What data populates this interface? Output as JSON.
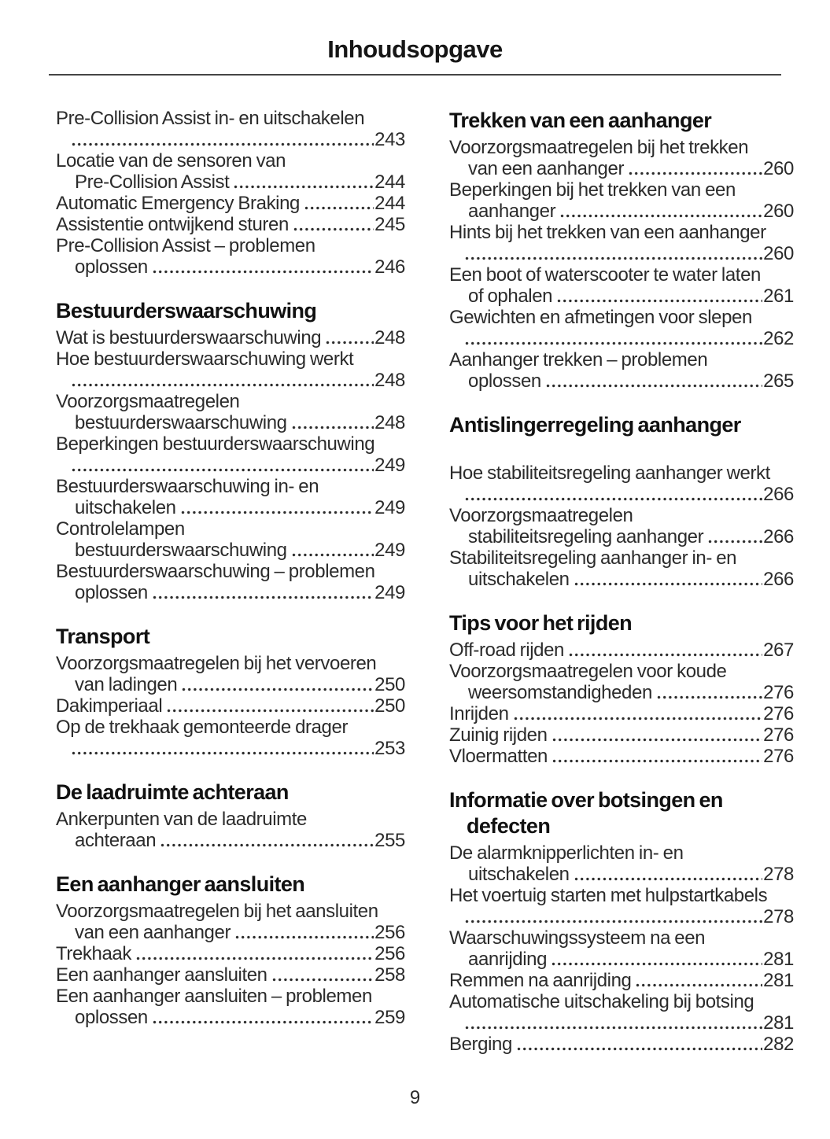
{
  "page": {
    "title": "Inhoudsopgave",
    "number": "9"
  },
  "toc": {
    "left": [
      {
        "items": [
          {
            "t1": "Pre-Collision Assist in- en uitschakelen",
            "t2": "",
            "page": "243"
          },
          {
            "t1": "Locatie van de sensoren van",
            "t2": "Pre-Collision Assist",
            "page": "244"
          },
          {
            "t1": "Automatic Emergency Braking",
            "page": "244"
          },
          {
            "t1": "Assistentie ontwijkend sturen",
            "page": "245"
          },
          {
            "t1": "Pre-Collision Assist – problemen",
            "t2": "oplossen",
            "page": "246"
          }
        ]
      },
      {
        "heading": "Bestuurderswaarschuwing",
        "items": [
          {
            "t1": "Wat is bestuurderswaarschuwing",
            "page": "248"
          },
          {
            "t1": "Hoe bestuurderswaarschuwing werkt",
            "t2": "",
            "page": "248"
          },
          {
            "t1": "Voorzorgsmaatregelen",
            "t2": "bestuurderswaarschuwing",
            "page": "248"
          },
          {
            "t1": "Beperkingen bestuurderswaarschuwing",
            "t2": "",
            "page": "249"
          },
          {
            "t1": "Bestuurderswaarschuwing in- en",
            "t2": "uitschakelen",
            "page": "249"
          },
          {
            "t1": "Controlelampen",
            "t2": "bestuurderswaarschuwing",
            "page": "249"
          },
          {
            "t1": "Bestuurderswaarschuwing – problemen",
            "t2": "oplossen",
            "page": "249"
          }
        ]
      },
      {
        "heading": "Transport",
        "items": [
          {
            "t1": "Voorzorgsmaatregelen bij het vervoeren",
            "t2": "van ladingen",
            "page": "250"
          },
          {
            "t1": "Dakimperiaal",
            "page": "250"
          },
          {
            "t1": "Op de trekhaak gemonteerde drager",
            "t2": "",
            "page": "253"
          }
        ]
      },
      {
        "heading": "De laadruimte achteraan",
        "items": [
          {
            "t1": "Ankerpunten van de laadruimte",
            "t2": "achteraan",
            "page": "255"
          }
        ]
      },
      {
        "heading": "Een aanhanger aansluiten",
        "items": [
          {
            "t1": "Voorzorgsmaatregelen bij het aansluiten",
            "t2": "van een aanhanger",
            "page": "256"
          },
          {
            "t1": "Trekhaak",
            "page": "256"
          },
          {
            "t1": "Een aanhanger aansluiten",
            "page": "258"
          },
          {
            "t1": "Een aanhanger aansluiten – problemen",
            "t2": "oplossen",
            "page": "259"
          }
        ]
      }
    ],
    "right": [
      {
        "heading": "Trekken van een aanhanger",
        "items": [
          {
            "t1": "Voorzorgsmaatregelen bij het trekken",
            "t2": "van een aanhanger",
            "page": "260"
          },
          {
            "t1": "Beperkingen bij het trekken van een",
            "t2": "aanhanger",
            "page": "260"
          },
          {
            "t1": "Hints bij het trekken van een aanhanger",
            "t2": "",
            "page": "260"
          },
          {
            "t1": "Een boot of waterscooter te water laten",
            "t2": "of ophalen",
            "page": "261"
          },
          {
            "t1": "Gewichten en afmetingen voor slepen",
            "t2": "",
            "page": "262"
          },
          {
            "t1": "Aanhanger trekken – problemen",
            "t2": "oplossen",
            "page": "265"
          }
        ]
      },
      {
        "heading": "Antislingerregeling aanhanger",
        "gap_after_heading": true,
        "items": [
          {
            "t1": "Hoe stabiliteitsregeling aanhanger werkt",
            "t2": "",
            "page": "266"
          },
          {
            "t1": "Voorzorgsmaatregelen",
            "t2": "stabiliteitsregeling aanhanger",
            "page": "266"
          },
          {
            "t1": "Stabiliteitsregeling aanhanger in- en",
            "t2": "uitschakelen",
            "page": "266"
          }
        ]
      },
      {
        "heading": "Tips voor het rijden",
        "items": [
          {
            "t1": "Off-road rijden",
            "page": "267"
          },
          {
            "t1": "Voorzorgsmaatregelen voor koude",
            "t2": "weersomstandigheden",
            "page": "276"
          },
          {
            "t1": "Inrijden",
            "page": "276"
          },
          {
            "t1": "Zuinig rijden",
            "page": "276"
          },
          {
            "t1": "Vloermatten",
            "page": "276"
          }
        ]
      },
      {
        "heading": "Informatie over botsingen en",
        "heading2": "defecten",
        "items": [
          {
            "t1": "De alarmknipperlichten in- en",
            "t2": "uitschakelen",
            "page": "278"
          },
          {
            "t1": "Het voertuig starten met hulpstartkabels",
            "t2": "",
            "page": "278"
          },
          {
            "t1": "Waarschuwingssysteem na een",
            "t2": "aanrijding",
            "page": "281"
          },
          {
            "t1": "Remmen na aanrijding",
            "page": "281"
          },
          {
            "t1": "Automatische uitschakeling bij botsing",
            "t2": "",
            "page": "281"
          },
          {
            "t1": "Berging",
            "page": "282"
          }
        ]
      }
    ]
  }
}
